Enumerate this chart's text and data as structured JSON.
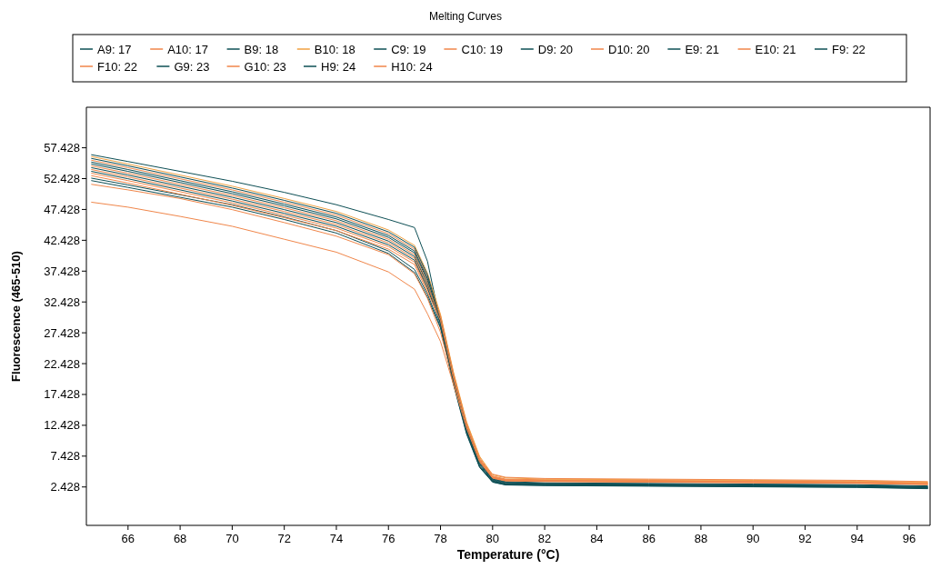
{
  "chart_data": {
    "type": "line",
    "title": "Melting Curves",
    "xlabel": "Temperature (°C)",
    "ylabel": "Fluorescence (465-510)",
    "x": [
      64.6,
      66,
      68,
      70,
      72,
      74,
      76,
      77,
      77.5,
      78,
      78.5,
      79,
      79.5,
      80,
      80.5,
      82,
      86,
      90,
      94,
      96.7
    ],
    "xlim": [
      64.4,
      96.8
    ],
    "xticks": [
      66,
      68,
      70,
      72,
      74,
      76,
      78,
      80,
      82,
      84,
      86,
      88,
      90,
      92,
      94,
      96
    ],
    "ylim": [
      -3.8,
      64
    ],
    "yticks": [
      2.428,
      7.428,
      12.428,
      17.428,
      22.428,
      27.428,
      32.428,
      37.428,
      42.428,
      47.428,
      52.428,
      57.428
    ],
    "grid": false,
    "legend": "top",
    "line_style": "solid",
    "series": [
      {
        "name": "A9: 17",
        "color": "#0d4f55",
        "values": [
          56.3,
          55.2,
          53.6,
          52.0,
          50.2,
          48.2,
          45.8,
          44.5,
          39,
          29,
          20,
          12,
          6.5,
          3.7,
          3.2,
          3.0,
          2.9,
          2.8,
          2.7,
          2.5
        ]
      },
      {
        "name": "A10: 17",
        "color": "#f0864a",
        "values": [
          55.4,
          54.2,
          52.4,
          50.6,
          48.6,
          46.5,
          43.5,
          41.0,
          36.5,
          30.2,
          20.8,
          12.8,
          7.2,
          4.2,
          3.7,
          3.6,
          3.5,
          3.4,
          3.3,
          3.1
        ]
      },
      {
        "name": "B9: 18",
        "color": "#0d4f55",
        "values": [
          54.8,
          53.6,
          51.8,
          50.0,
          48.0,
          45.9,
          42.9,
          40.4,
          35.9,
          29.2,
          19.8,
          11.8,
          6.2,
          3.5,
          3.0,
          2.85,
          2.75,
          2.65,
          2.55,
          2.35
        ]
      },
      {
        "name": "B10: 18",
        "color": "#f0a040",
        "values": [
          56.0,
          54.8,
          53.0,
          51.2,
          49.2,
          47.1,
          44.1,
          41.6,
          37.1,
          30.4,
          21.0,
          13.0,
          7.4,
          4.4,
          3.9,
          3.7,
          3.6,
          3.5,
          3.4,
          3.2
        ]
      },
      {
        "name": "C9: 19",
        "color": "#0d4f55",
        "values": [
          55.7,
          54.5,
          52.7,
          50.9,
          48.9,
          46.8,
          43.8,
          41.3,
          36.8,
          29.6,
          20.2,
          12.2,
          6.6,
          3.8,
          3.3,
          3.1,
          3.0,
          2.9,
          2.8,
          2.6
        ]
      },
      {
        "name": "C10: 19",
        "color": "#f0864a",
        "values": [
          54.5,
          53.3,
          51.5,
          49.7,
          47.7,
          45.6,
          42.6,
          40.1,
          35.6,
          30.0,
          20.6,
          12.6,
          7.0,
          4.1,
          3.6,
          3.5,
          3.4,
          3.3,
          3.2,
          3.0
        ]
      },
      {
        "name": "D9: 20",
        "color": "#0d4f55",
        "values": [
          54.2,
          53.0,
          51.2,
          49.4,
          47.4,
          45.3,
          42.3,
          39.8,
          35.3,
          29.0,
          19.6,
          11.6,
          6.0,
          3.4,
          2.9,
          2.8,
          2.7,
          2.6,
          2.5,
          2.3
        ]
      },
      {
        "name": "D10: 20",
        "color": "#f0864a",
        "values": [
          53.9,
          52.7,
          50.9,
          49.1,
          47.1,
          45.0,
          42.0,
          39.5,
          35.0,
          29.8,
          20.4,
          12.4,
          6.8,
          4.0,
          3.5,
          3.45,
          3.35,
          3.25,
          3.15,
          2.95
        ]
      },
      {
        "name": "E9: 21",
        "color": "#0d4f55",
        "values": [
          52.5,
          51.4,
          49.8,
          48.2,
          46.2,
          44.0,
          40.7,
          37.7,
          33.7,
          28.4,
          19.2,
          11.2,
          5.7,
          3.25,
          2.8,
          2.7,
          2.6,
          2.5,
          2.4,
          2.2
        ]
      },
      {
        "name": "E10: 21",
        "color": "#f0864a",
        "values": [
          53.3,
          52.1,
          50.3,
          48.5,
          46.5,
          44.4,
          41.4,
          38.9,
          34.4,
          29.6,
          20.2,
          12.2,
          6.6,
          3.9,
          3.45,
          3.35,
          3.25,
          3.15,
          3.05,
          2.85
        ]
      },
      {
        "name": "F9: 22",
        "color": "#0d4f55",
        "values": [
          52.1,
          51.0,
          49.4,
          47.8,
          45.8,
          43.6,
          40.3,
          37.2,
          33.2,
          28.2,
          19.0,
          11.0,
          5.6,
          3.2,
          2.75,
          2.65,
          2.55,
          2.45,
          2.35,
          2.15
        ]
      },
      {
        "name": "F10: 22",
        "color": "#f0864a",
        "values": [
          51.5,
          50.6,
          49.2,
          47.4,
          45.3,
          43.1,
          40.1,
          37,
          33,
          27.5,
          19.5,
          12,
          6.8,
          4,
          3.6,
          3.4,
          3.3,
          3.2,
          3.1,
          2.9
        ]
      },
      {
        "name": "G9: 23",
        "color": "#0d4f55",
        "values": [
          53.6,
          52.4,
          50.6,
          48.8,
          46.8,
          44.7,
          41.7,
          39.2,
          34.7,
          28.8,
          19.4,
          11.4,
          5.8,
          3.3,
          2.85,
          2.75,
          2.65,
          2.55,
          2.45,
          2.25
        ]
      },
      {
        "name": "G10: 23",
        "color": "#f0864a",
        "values": [
          48.6,
          47.8,
          46.3,
          44.7,
          42.6,
          40.5,
          37.3,
          34.5,
          30.5,
          26,
          19,
          12,
          6.8,
          4.5,
          4.0,
          3.8,
          3.7,
          3.6,
          3.5,
          3.3
        ]
      },
      {
        "name": "H9: 24",
        "color": "#0d4f55",
        "values": [
          55.1,
          53.9,
          52.1,
          50.3,
          48.3,
          46.2,
          43.2,
          40.7,
          36.2,
          29.4,
          20.0,
          12.0,
          6.4,
          3.6,
          3.1,
          2.95,
          2.85,
          2.75,
          2.65,
          2.45
        ]
      },
      {
        "name": "H10: 24",
        "color": "#f0864a",
        "values": [
          52.9,
          51.7,
          49.9,
          48.1,
          46.1,
          44.0,
          41.0,
          38.5,
          34.0,
          29.4,
          20.0,
          12.0,
          6.5,
          3.85,
          3.4,
          3.3,
          3.2,
          3.1,
          3.0,
          2.8
        ]
      }
    ]
  }
}
